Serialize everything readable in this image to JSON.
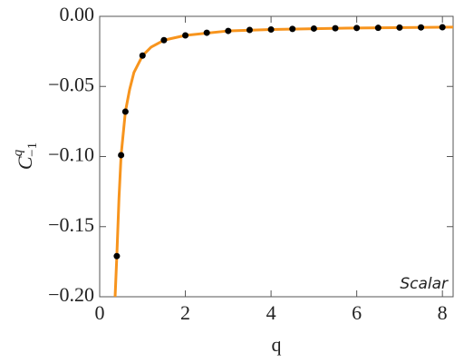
{
  "chart_data": {
    "type": "scatter",
    "ylabel": {
      "base": "C",
      "sub": "−1",
      "sup": "q"
    },
    "xlabel": "q",
    "annotation": "Scalar",
    "xlim": [
      0,
      8.25
    ],
    "ylim": [
      -0.2,
      0
    ],
    "xticks": [
      0,
      2,
      4,
      6,
      8
    ],
    "yticks": [
      {
        "value": 0,
        "label": "0.00"
      },
      {
        "value": -0.05,
        "label": "−0.05"
      },
      {
        "value": -0.1,
        "label": "−0.10"
      },
      {
        "value": -0.15,
        "label": "−0.15"
      },
      {
        "value": -0.2,
        "label": "−0.20"
      }
    ],
    "points": {
      "color": "#000000",
      "x": [
        0.4,
        0.5,
        0.6,
        1,
        1.5,
        2,
        2.5,
        3,
        3.5,
        4,
        4.5,
        5,
        5.5,
        6,
        6.5,
        7,
        7.5,
        8
      ],
      "values": [
        -0.171,
        -0.099,
        -0.068,
        -0.028,
        -0.017,
        -0.0136,
        -0.0117,
        -0.0104,
        -0.0097,
        -0.0094,
        -0.009,
        -0.0087,
        -0.0085,
        -0.0083,
        -0.0082,
        -0.008,
        -0.0079,
        -0.0078
      ]
    },
    "curve": {
      "color": "#f7941d",
      "x": [
        0.36,
        0.4,
        0.45,
        0.5,
        0.6,
        0.7,
        0.8,
        1,
        1.2,
        1.5,
        2,
        3,
        4,
        6,
        8.25
      ],
      "values": [
        -0.2,
        -0.171,
        -0.13,
        -0.099,
        -0.068,
        -0.052,
        -0.04,
        -0.028,
        -0.022,
        -0.017,
        -0.0136,
        -0.0104,
        -0.0094,
        -0.0083,
        -0.0077
      ]
    }
  }
}
